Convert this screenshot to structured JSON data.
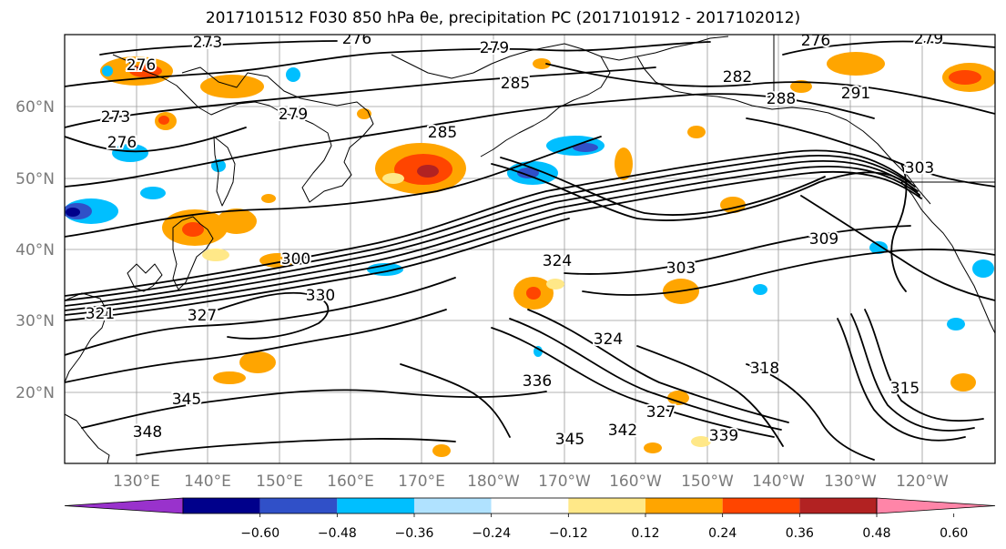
{
  "title": "2017101512 F030 850 hPa θe, precipitation PC (2017101912 - 2017102012)",
  "lat_labels": [
    "60°N",
    "50°N",
    "40°N",
    "30°N",
    "20°N"
  ],
  "lon_labels": [
    "130°E",
    "140°E",
    "150°E",
    "160°E",
    "170°E",
    "180°W",
    "170°W",
    "160°W",
    "150°W",
    "140°W",
    "130°W",
    "120°W"
  ],
  "contour_labels": [
    {
      "text": "273"
    },
    {
      "text": "276"
    },
    {
      "text": "279"
    },
    {
      "text": "276"
    },
    {
      "text": "279"
    },
    {
      "text": "285"
    },
    {
      "text": "282"
    },
    {
      "text": "288"
    },
    {
      "text": "291"
    },
    {
      "text": "273"
    },
    {
      "text": "276"
    },
    {
      "text": "279"
    },
    {
      "text": "285"
    },
    {
      "text": "276"
    },
    {
      "text": "303"
    },
    {
      "text": "309"
    },
    {
      "text": "300"
    },
    {
      "text": "324"
    },
    {
      "text": "303"
    },
    {
      "text": "324"
    },
    {
      "text": "336"
    },
    {
      "text": "345"
    },
    {
      "text": "348"
    },
    {
      "text": "345"
    },
    {
      "text": "342"
    },
    {
      "text": "327"
    },
    {
      "text": "339"
    },
    {
      "text": "318"
    },
    {
      "text": "315"
    },
    {
      "text": "327"
    },
    {
      "text": "330"
    },
    {
      "text": "321"
    }
  ],
  "colorbar": {
    "colors": [
      "#9932cc",
      "#00008b",
      "#3050c8",
      "#00bfff",
      "#b0e2ff",
      "#ffffff",
      "#ffe888",
      "#ffa500",
      "#ff4500",
      "#b22222",
      "#ff85a8"
    ],
    "ticks": [
      "−0.60",
      "−0.48",
      "−0.36",
      "−0.24",
      "−0.12",
      "0.12",
      "0.24",
      "0.36",
      "0.48",
      "0.60"
    ]
  }
}
